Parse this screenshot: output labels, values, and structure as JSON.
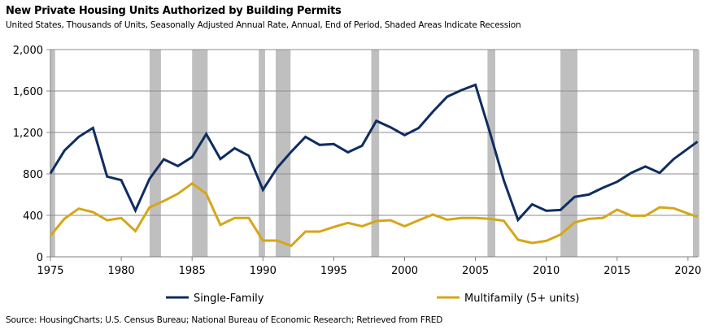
{
  "chart_data": {
    "type": "line",
    "title": "New Private Housing Units Authorized by Building Permits",
    "subtitle": "United States, Thousands of Units, Seasonally Adjusted Annual Rate, Annual, End of Period, Shaded Areas Indicate Recession",
    "source": "Source: HousingCharts; U.S. Census Bureau; National Bureau of Economic Research; Retrieved from FRED",
    "xlabel": "",
    "ylabel": "",
    "xlim": [
      1975,
      2020.8
    ],
    "ylim": [
      0,
      2000
    ],
    "grid": true,
    "legend_position": "bottom",
    "x_ticks": [
      "1975",
      "1980",
      "1985",
      "1990",
      "1995",
      "2000",
      "2005",
      "2010",
      "2015",
      "2020"
    ],
    "y_ticks": [
      "0",
      "400",
      "800",
      "1,200",
      "1,600",
      "2,000"
    ],
    "x": [
      1975,
      1976,
      1977,
      1978,
      1979,
      1980,
      1981,
      1982,
      1983,
      1984,
      1985,
      1986,
      1987,
      1988,
      1989,
      1990,
      1991,
      1992,
      1993,
      1994,
      1995,
      1996,
      1997,
      1998,
      1999,
      2000,
      2001,
      2002,
      2003,
      2004,
      2005,
      2006,
      2007,
      2008,
      2009,
      2010,
      2011,
      2012,
      2013,
      2014,
      2015,
      2016,
      2017,
      2018,
      2019,
      2020.67
    ],
    "series": [
      {
        "name": "Single-Family",
        "color": "#0e2d61",
        "values": [
          805,
          1027,
          1158,
          1244,
          774,
          740,
          447,
          753,
          941,
          876,
          962,
          1184,
          944,
          1048,
          975,
          646,
          857,
          1014,
          1158,
          1080,
          1088,
          1009,
          1072,
          1312,
          1250,
          1174,
          1244,
          1401,
          1545,
          1608,
          1660,
          1210,
          740,
          356,
          507,
          444,
          452,
          578,
          601,
          667,
          724,
          810,
          871,
          810,
          944,
          1111
        ]
      },
      {
        "name": "Multifamily (5+ units)",
        "color": "#d6a619",
        "values": [
          204,
          369,
          465,
          431,
          353,
          374,
          248,
          478,
          539,
          609,
          708,
          609,
          308,
          374,
          374,
          157,
          157,
          107,
          243,
          243,
          288,
          327,
          295,
          345,
          353,
          295,
          353,
          408,
          358,
          374,
          374,
          366,
          348,
          165,
          133,
          154,
          214,
          332,
          366,
          376,
          455,
          397,
          397,
          478,
          468,
          384
        ]
      }
    ],
    "recessions": [
      [
        1975.0,
        1975.33
      ],
      [
        1982.0,
        1982.8
      ],
      [
        1985.0,
        1986.1
      ],
      [
        1989.7,
        1990.15
      ],
      [
        1990.9,
        1991.95
      ],
      [
        1997.65,
        1998.2
      ],
      [
        2005.85,
        2006.4
      ],
      [
        2011.0,
        2012.2
      ],
      [
        2020.35,
        2020.8
      ]
    ],
    "recession_color": "#bfbfbf",
    "grid_color": "#8c8c8c"
  }
}
